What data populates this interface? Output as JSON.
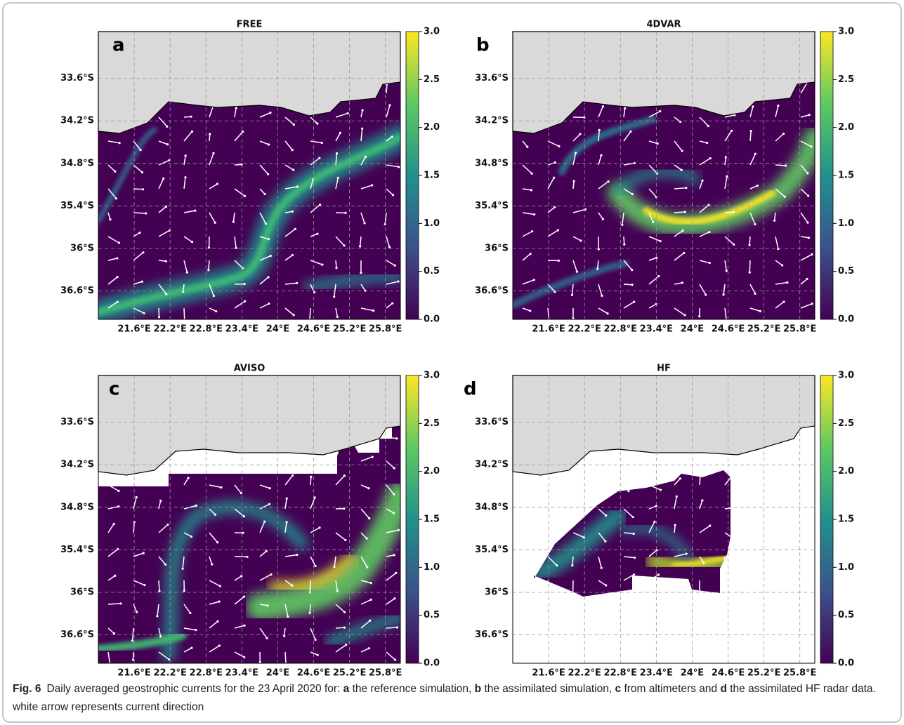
{
  "chart_data": [
    {
      "type": "map",
      "panel": "a",
      "title": "FREE",
      "colormap": "viridis",
      "grid": true,
      "xlim": [
        21.0,
        26.05
      ],
      "xticks": [
        {
          "value": 21.6,
          "label": "21.6°E"
        },
        {
          "value": 22.2,
          "label": "22.2°E"
        },
        {
          "value": 22.8,
          "label": "22.8°E"
        },
        {
          "value": 23.4,
          "label": "23.4°E"
        },
        {
          "value": 24,
          "label": "24°E"
        },
        {
          "value": 24.6,
          "label": "24.6°E"
        },
        {
          "value": 25.2,
          "label": "25.2°E"
        },
        {
          "value": 25.8,
          "label": "25.8°E"
        }
      ],
      "ylim": [
        -37.0,
        -32.94
      ],
      "yticks": [
        {
          "value": -33.6,
          "label": "33.6°S"
        },
        {
          "value": -34.2,
          "label": "34.2°S"
        },
        {
          "value": -34.8,
          "label": "34.8°S"
        },
        {
          "value": -35.4,
          "label": "35.4°S"
        },
        {
          "value": -36,
          "label": "36°S"
        },
        {
          "value": -36.6,
          "label": "36.6°S"
        }
      ],
      "clim": [
        0,
        3.0
      ],
      "cticks": [
        {
          "value": 0,
          "label": "0.0"
        },
        0.5,
        {
          "value": 1,
          "label": "1.0"
        },
        1.5,
        {
          "value": 2,
          "label": "2.0"
        },
        2.5,
        {
          "value": 3,
          "label": "3.0"
        }
      ]
    },
    {
      "type": "map",
      "panel": "b",
      "title": "4DVAR",
      "colormap": "viridis",
      "grid": true,
      "xlim": [
        21.0,
        26.05
      ],
      "xticks": [
        {
          "value": 21.6,
          "label": "21.6°E"
        },
        {
          "value": 22.2,
          "label": "22.2°E"
        },
        {
          "value": 22.8,
          "label": "22.8°E"
        },
        {
          "value": 23.4,
          "label": "23.4°E"
        },
        {
          "value": 24,
          "label": "24°E"
        },
        {
          "value": 24.6,
          "label": "24.6°E"
        },
        {
          "value": 25.2,
          "label": "25.2°E"
        },
        {
          "value": 25.8,
          "label": "25.8°E"
        }
      ],
      "ylim": [
        -37.0,
        -32.94
      ],
      "yticks": [
        {
          "value": -33.6,
          "label": "33.6°S"
        },
        {
          "value": -34.2,
          "label": "34.2°S"
        },
        {
          "value": -34.8,
          "label": "34.8°S"
        },
        {
          "value": -35.4,
          "label": "35.4°S"
        },
        {
          "value": -36,
          "label": "36°S"
        },
        {
          "value": -36.6,
          "label": "36.6°S"
        }
      ],
      "clim": [
        0,
        3.0
      ],
      "cticks": [
        {
          "value": 0,
          "label": "0.0"
        },
        0.5,
        {
          "value": 1,
          "label": "1.0"
        },
        1.5,
        {
          "value": 2,
          "label": "2.0"
        },
        2.5,
        {
          "value": 3,
          "label": "3.0"
        }
      ]
    },
    {
      "type": "map",
      "panel": "c",
      "title": "AVISO",
      "colormap": "viridis",
      "grid": true,
      "xlim": [
        21.0,
        26.05
      ],
      "xticks": [
        {
          "value": 21.6,
          "label": "21.6°E"
        },
        {
          "value": 22.2,
          "label": "22.2°E"
        },
        {
          "value": 22.8,
          "label": "22.8°E"
        },
        {
          "value": 23.4,
          "label": "23.4°E"
        },
        {
          "value": 24,
          "label": "24°E"
        },
        {
          "value": 24.6,
          "label": "24.6°E"
        },
        {
          "value": 25.2,
          "label": "25.2°E"
        },
        {
          "value": 25.8,
          "label": "25.8°E"
        }
      ],
      "ylim": [
        -37.0,
        -32.94
      ],
      "yticks": [
        {
          "value": -33.6,
          "label": "33.6°S"
        },
        {
          "value": -34.2,
          "label": "34.2°S"
        },
        {
          "value": -34.8,
          "label": "34.8°S"
        },
        {
          "value": -35.4,
          "label": "35.4°S"
        },
        {
          "value": -36,
          "label": "36°S"
        },
        {
          "value": -36.6,
          "label": "36.6°S"
        }
      ],
      "clim": [
        0,
        3.0
      ],
      "cticks": [
        {
          "value": 0,
          "label": "0.0"
        },
        0.5,
        {
          "value": 1,
          "label": "1.0"
        },
        1.5,
        {
          "value": 2,
          "label": "2.0"
        },
        2.5,
        {
          "value": 3,
          "label": "3.0"
        }
      ]
    },
    {
      "type": "map",
      "panel": "d",
      "title": "HF",
      "colormap": "viridis",
      "grid": true,
      "xlim": [
        21.0,
        26.05
      ],
      "xticks": [
        {
          "value": 21.6,
          "label": "21.6°E"
        },
        {
          "value": 22.2,
          "label": "22.2°E"
        },
        {
          "value": 22.8,
          "label": "22.8°E"
        },
        {
          "value": 23.4,
          "label": "23.4°E"
        },
        {
          "value": 24,
          "label": "24°E"
        },
        {
          "value": 24.6,
          "label": "24.6°E"
        },
        {
          "value": 25.2,
          "label": "25.2°E"
        },
        {
          "value": 25.8,
          "label": "25.8°E"
        }
      ],
      "ylim": [
        -37.0,
        -32.94
      ],
      "yticks": [
        {
          "value": -33.6,
          "label": "33.6°S"
        },
        {
          "value": -34.2,
          "label": "34.2°S"
        },
        {
          "value": -34.8,
          "label": "34.8°S"
        },
        {
          "value": -35.4,
          "label": "35.4°S"
        },
        {
          "value": -36,
          "label": "36°S"
        },
        {
          "value": -36.6,
          "label": "36.6°S"
        }
      ],
      "clim": [
        0,
        3.0
      ],
      "cticks": [
        {
          "value": 0,
          "label": "0.0"
        },
        0.5,
        {
          "value": 1,
          "label": "1.0"
        },
        1.5,
        {
          "value": 2,
          "label": "2.0"
        },
        2.5,
        {
          "value": 3,
          "label": "3.0"
        }
      ]
    }
  ],
  "caption": {
    "label": "Fig. 6",
    "segments": [
      "Daily averaged geostrophic currents for the 23 April 2020 for:",
      "a",
      "the reference simulation,",
      "b",
      "the assimilated simulation,",
      "c",
      "from altimeters and",
      "d",
      "the assimilated HF radar data. white arrow represents current direction"
    ]
  }
}
